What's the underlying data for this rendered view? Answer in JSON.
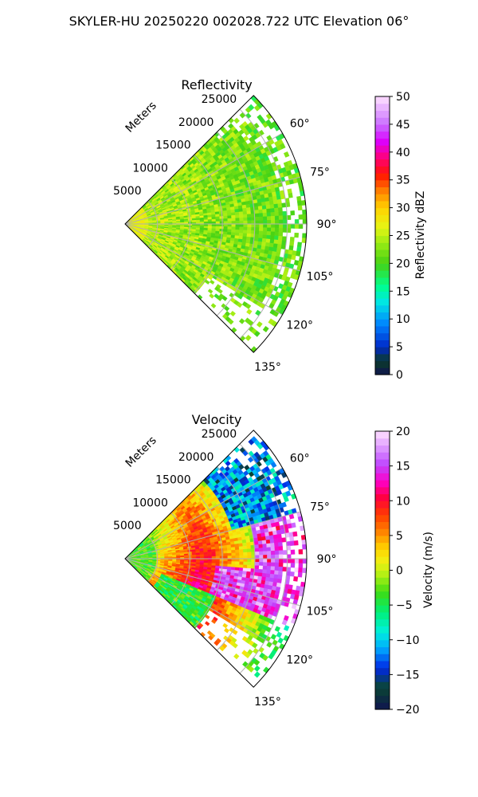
{
  "figure": {
    "title": "SKYLER-HU  20250220  002028.722 UTC Elevation 06°"
  },
  "chart_data": [
    {
      "type": "heatmap",
      "projection": "polar-sector",
      "title": "Reflectivity",
      "radial_label": "Meters",
      "radial_ticks": [
        "5000",
        "10000",
        "15000",
        "20000",
        "25000"
      ],
      "radial_range_m": [
        0,
        28000
      ],
      "azimuth_range_deg": [
        45,
        135
      ],
      "azimuth_ticks": [
        "60°",
        "75°",
        "90°",
        "105°",
        "120°",
        "135°"
      ],
      "grid": true,
      "field": "reflectivity",
      "colorbar": {
        "label": "Reflectivity dBZ",
        "range": [
          0,
          50
        ],
        "ticks": [
          "0",
          "5",
          "10",
          "15",
          "20",
          "25",
          "30",
          "35",
          "40",
          "45",
          "50"
        ]
      }
    },
    {
      "type": "heatmap",
      "projection": "polar-sector",
      "title": "Velocity",
      "radial_label": "Meters",
      "radial_ticks": [
        "5000",
        "10000",
        "15000",
        "20000",
        "25000"
      ],
      "radial_range_m": [
        0,
        28000
      ],
      "azimuth_range_deg": [
        45,
        135
      ],
      "azimuth_ticks": [
        "60°",
        "75°",
        "90°",
        "105°",
        "120°",
        "135°"
      ],
      "grid": true,
      "field": "velocity",
      "colorbar": {
        "label": "Velocity (m/s)",
        "range": [
          -20,
          20
        ],
        "ticks": [
          "−20",
          "−15",
          "−10",
          "−5",
          "0",
          "5",
          "10",
          "15",
          "20"
        ]
      }
    }
  ]
}
